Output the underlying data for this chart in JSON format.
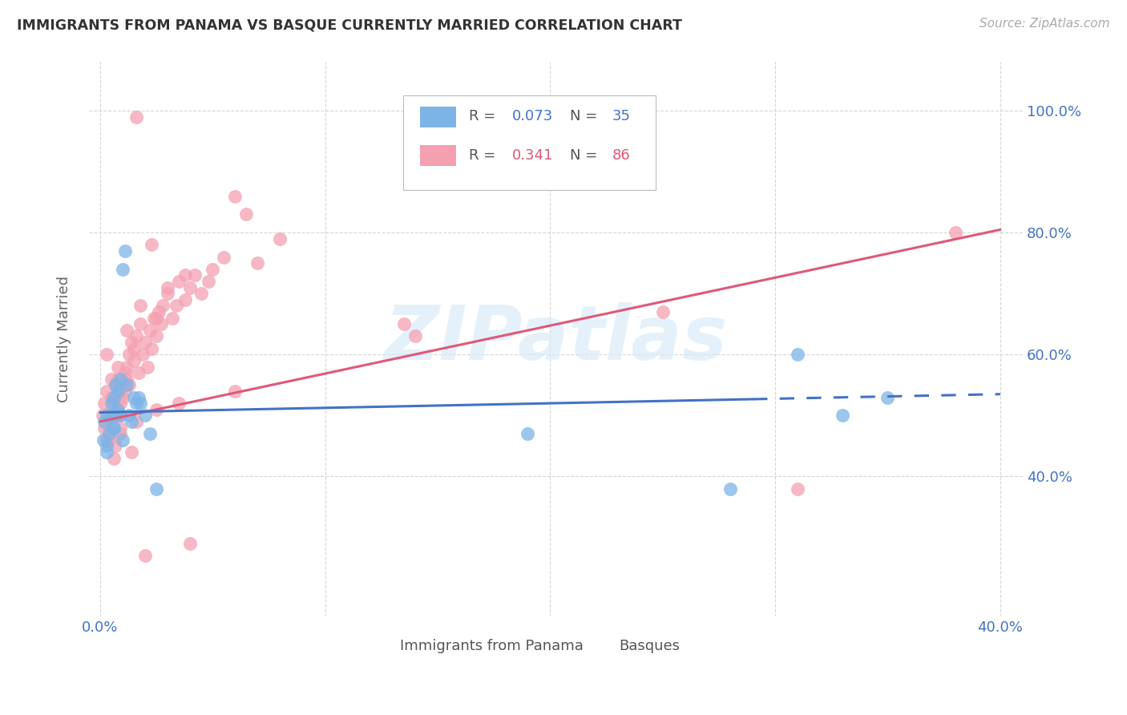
{
  "title": "IMMIGRANTS FROM PANAMA VS BASQUE CURRENTLY MARRIED CORRELATION CHART",
  "source": "Source: ZipAtlas.com",
  "ylabel": "Currently Married",
  "xlim": [
    -0.005,
    0.41
  ],
  "ylim": [
    0.17,
    1.08
  ],
  "xticks": [
    0.0,
    0.1,
    0.2,
    0.3,
    0.4
  ],
  "xtick_labels": [
    "0.0%",
    "",
    "",
    "",
    "40.0%"
  ],
  "yticks": [
    0.4,
    0.6,
    0.8,
    1.0
  ],
  "ytick_labels": [
    "40.0%",
    "60.0%",
    "80.0%",
    "100.0%"
  ],
  "grid_color": "#cccccc",
  "background_color": "#ffffff",
  "blue_scatter_color": "#7cb4e8",
  "pink_scatter_color": "#f4a0b0",
  "blue_line_color": "#4472c4",
  "pink_line_color": "#e05878",
  "blue_text_color": "#4472c4",
  "pink_text_color": "#e05878",
  "watermark_color": "#d8eaf8",
  "panama_R": "0.073",
  "panama_N": "35",
  "basque_R": "0.341",
  "basque_N": "86",
  "legend_label_1": "Immigrants from Panama",
  "legend_label_2": "Basques",
  "trend_panama": [
    0.0,
    0.505,
    0.4,
    0.535
  ],
  "trend_basque": [
    0.0,
    0.49,
    0.4,
    0.805
  ],
  "trend_panama_dashed_start": 0.29,
  "panama_x": [
    0.0015,
    0.002,
    0.003,
    0.003,
    0.004,
    0.005,
    0.005,
    0.006,
    0.006,
    0.007,
    0.007,
    0.008,
    0.008,
    0.009,
    0.009,
    0.01,
    0.011,
    0.012,
    0.013,
    0.014,
    0.015,
    0.016,
    0.017,
    0.018,
    0.02,
    0.022,
    0.025,
    0.19,
    0.28,
    0.31,
    0.33,
    0.35,
    0.003,
    0.006,
    0.01
  ],
  "panama_y": [
    0.46,
    0.49,
    0.5,
    0.44,
    0.47,
    0.52,
    0.5,
    0.53,
    0.48,
    0.55,
    0.5,
    0.51,
    0.54,
    0.56,
    0.5,
    0.74,
    0.77,
    0.55,
    0.5,
    0.49,
    0.53,
    0.52,
    0.53,
    0.52,
    0.5,
    0.47,
    0.38,
    0.47,
    0.38,
    0.6,
    0.5,
    0.53,
    0.45,
    0.48,
    0.46
  ],
  "basque_x": [
    0.001,
    0.002,
    0.002,
    0.003,
    0.003,
    0.004,
    0.004,
    0.005,
    0.005,
    0.005,
    0.006,
    0.006,
    0.007,
    0.007,
    0.007,
    0.008,
    0.008,
    0.008,
    0.009,
    0.009,
    0.009,
    0.01,
    0.01,
    0.011,
    0.011,
    0.012,
    0.012,
    0.013,
    0.013,
    0.014,
    0.015,
    0.015,
    0.016,
    0.017,
    0.018,
    0.019,
    0.02,
    0.021,
    0.022,
    0.023,
    0.024,
    0.025,
    0.026,
    0.027,
    0.028,
    0.03,
    0.032,
    0.034,
    0.035,
    0.038,
    0.04,
    0.042,
    0.045,
    0.048,
    0.05,
    0.055,
    0.06,
    0.065,
    0.07,
    0.08,
    0.016,
    0.023,
    0.03,
    0.038,
    0.018,
    0.025,
    0.012,
    0.008,
    0.005,
    0.003,
    0.25,
    0.135,
    0.14,
    0.02,
    0.04,
    0.014,
    0.009,
    0.007,
    0.006,
    0.004,
    0.016,
    0.025,
    0.035,
    0.06,
    0.31,
    0.38
  ],
  "basque_y": [
    0.5,
    0.48,
    0.52,
    0.46,
    0.54,
    0.5,
    0.48,
    0.49,
    0.53,
    0.47,
    0.52,
    0.5,
    0.51,
    0.53,
    0.55,
    0.54,
    0.5,
    0.56,
    0.52,
    0.5,
    0.48,
    0.55,
    0.53,
    0.57,
    0.54,
    0.56,
    0.58,
    0.6,
    0.55,
    0.62,
    0.59,
    0.61,
    0.63,
    0.57,
    0.65,
    0.6,
    0.62,
    0.58,
    0.64,
    0.61,
    0.66,
    0.63,
    0.67,
    0.65,
    0.68,
    0.7,
    0.66,
    0.68,
    0.72,
    0.69,
    0.71,
    0.73,
    0.7,
    0.72,
    0.74,
    0.76,
    0.86,
    0.83,
    0.75,
    0.79,
    0.99,
    0.78,
    0.71,
    0.73,
    0.68,
    0.66,
    0.64,
    0.58,
    0.56,
    0.6,
    0.67,
    0.65,
    0.63,
    0.27,
    0.29,
    0.44,
    0.47,
    0.45,
    0.43,
    0.46,
    0.49,
    0.51,
    0.52,
    0.54,
    0.38,
    0.8
  ]
}
